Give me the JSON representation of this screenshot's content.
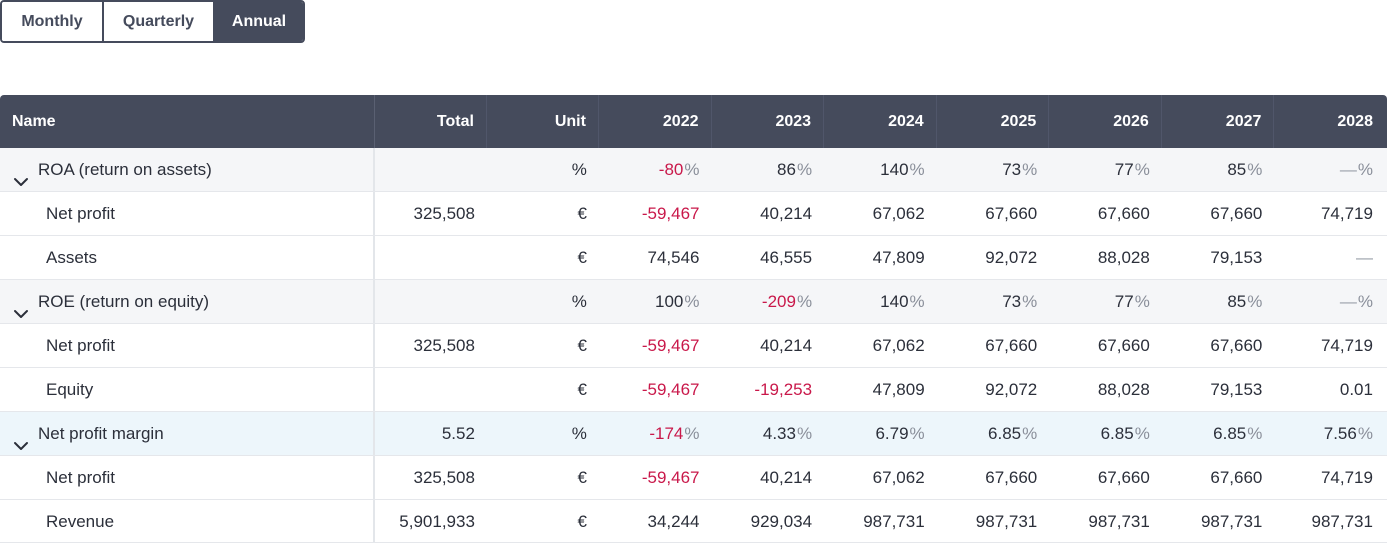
{
  "tabs": [
    {
      "label": "Monthly",
      "active": false
    },
    {
      "label": "Quarterly",
      "active": false
    },
    {
      "label": "Annual",
      "active": true
    }
  ],
  "columns": [
    "Name",
    "Total",
    "Unit",
    "2022",
    "2023",
    "2024",
    "2025",
    "2026",
    "2027",
    "2028"
  ],
  "rows": [
    {
      "type": "group",
      "name": "ROA (return on assets)",
      "total": "",
      "unit": "%",
      "percent": true,
      "values": [
        "-80",
        "86",
        "140",
        "73",
        "77",
        "85",
        "—"
      ],
      "negative": [
        true,
        false,
        false,
        false,
        false,
        false,
        false
      ]
    },
    {
      "type": "child",
      "name": "Net profit",
      "total": "325,508",
      "unit": "€",
      "percent": false,
      "values": [
        "-59,467",
        "40,214",
        "67,062",
        "67,660",
        "67,660",
        "67,660",
        "74,719"
      ],
      "negative": [
        true,
        false,
        false,
        false,
        false,
        false,
        false
      ]
    },
    {
      "type": "child",
      "name": "Assets",
      "total": "",
      "unit": "€",
      "percent": false,
      "values": [
        "74,546",
        "46,555",
        "47,809",
        "92,072",
        "88,028",
        "79,153",
        "—"
      ],
      "negative": [
        false,
        false,
        false,
        false,
        false,
        false,
        false
      ]
    },
    {
      "type": "group",
      "name": "ROE (return on equity)",
      "total": "",
      "unit": "%",
      "percent": true,
      "values": [
        "100",
        "-209",
        "140",
        "73",
        "77",
        "85",
        "—"
      ],
      "negative": [
        false,
        true,
        false,
        false,
        false,
        false,
        false
      ]
    },
    {
      "type": "child",
      "name": "Net profit",
      "total": "325,508",
      "unit": "€",
      "percent": false,
      "values": [
        "-59,467",
        "40,214",
        "67,062",
        "67,660",
        "67,660",
        "67,660",
        "74,719"
      ],
      "negative": [
        true,
        false,
        false,
        false,
        false,
        false,
        false
      ]
    },
    {
      "type": "child",
      "name": "Equity",
      "total": "",
      "unit": "€",
      "percent": false,
      "values": [
        "-59,467",
        "-19,253",
        "47,809",
        "92,072",
        "88,028",
        "79,153",
        "0.01"
      ],
      "negative": [
        true,
        true,
        false,
        false,
        false,
        false,
        false
      ]
    },
    {
      "type": "group",
      "highlight": true,
      "name": "Net profit margin",
      "total": "5.52",
      "unit": "%",
      "percent": true,
      "values": [
        "-174",
        "4.33",
        "6.79",
        "6.85",
        "6.85",
        "6.85",
        "7.56"
      ],
      "negative": [
        true,
        false,
        false,
        false,
        false,
        false,
        false
      ]
    },
    {
      "type": "child",
      "name": "Net profit",
      "total": "325,508",
      "unit": "€",
      "percent": false,
      "values": [
        "-59,467",
        "40,214",
        "67,062",
        "67,660",
        "67,660",
        "67,660",
        "74,719"
      ],
      "negative": [
        true,
        false,
        false,
        false,
        false,
        false,
        false
      ]
    },
    {
      "type": "child",
      "name": "Revenue",
      "total": "5,901,933",
      "unit": "€",
      "percent": false,
      "values": [
        "34,244",
        "929,034",
        "987,731",
        "987,731",
        "987,731",
        "987,731",
        "987,731"
      ],
      "negative": [
        false,
        false,
        false,
        false,
        false,
        false,
        false
      ]
    }
  ],
  "percent_suffix": "%",
  "colors": {
    "header_bg": "#454b5c",
    "negative": "#c9184a",
    "group_bg": "#f5f6f8",
    "highlight_bg": "#edf6fb"
  }
}
